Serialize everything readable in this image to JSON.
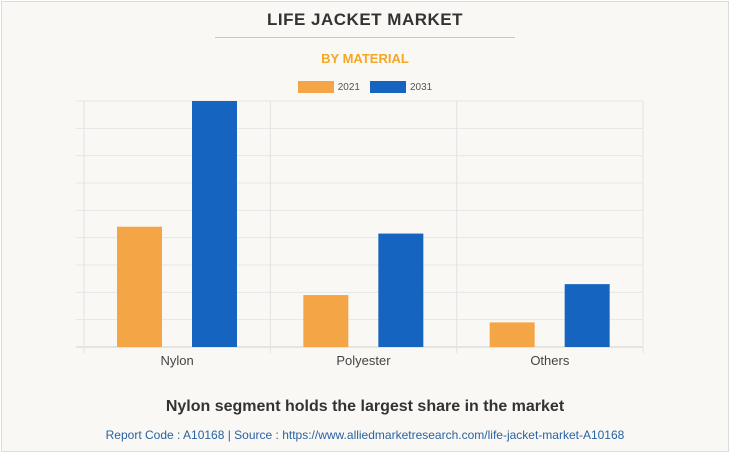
{
  "chart_data": {
    "type": "bar",
    "title": "LIFE JACKET MARKET",
    "subtitle": "BY MATERIAL",
    "categories": [
      "Nylon",
      "Polyester",
      "Others"
    ],
    "series": [
      {
        "name": "2021",
        "color": "#f4a545",
        "values": [
          4.4,
          1.9,
          0.9
        ]
      },
      {
        "name": "2031",
        "color": "#1565c0",
        "values": [
          9.0,
          4.15,
          2.3
        ]
      }
    ],
    "ylim": [
      0,
      9
    ],
    "y_gridlines": 10,
    "y_tick_labels_visible": false,
    "grid": true,
    "legend_position": "top-center"
  },
  "footer": {
    "headline": "Nylon segment holds the largest share in the market",
    "source": "Report Code : A10168  |  Source : https://www.alliedmarketresearch.com/life-jacket-market-A10168"
  }
}
